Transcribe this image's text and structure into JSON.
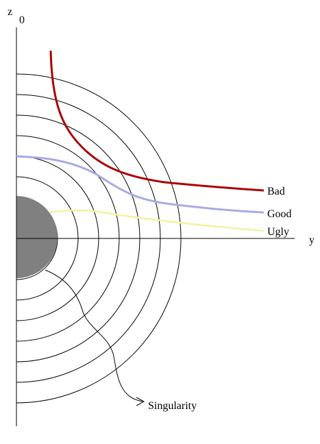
{
  "axes": {
    "z_label": "z",
    "z_subscript": "0",
    "y_label": "y"
  },
  "curves": [
    {
      "label": "Bad",
      "color": "#aa0000"
    },
    {
      "label": "Good",
      "color": "#a9a9e6"
    },
    {
      "label": "Ugly",
      "color": "#f2f2a0"
    }
  ],
  "annotation": {
    "label": "Singularity"
  },
  "singularity": {
    "color": "#808080"
  },
  "ring_count": 7
}
